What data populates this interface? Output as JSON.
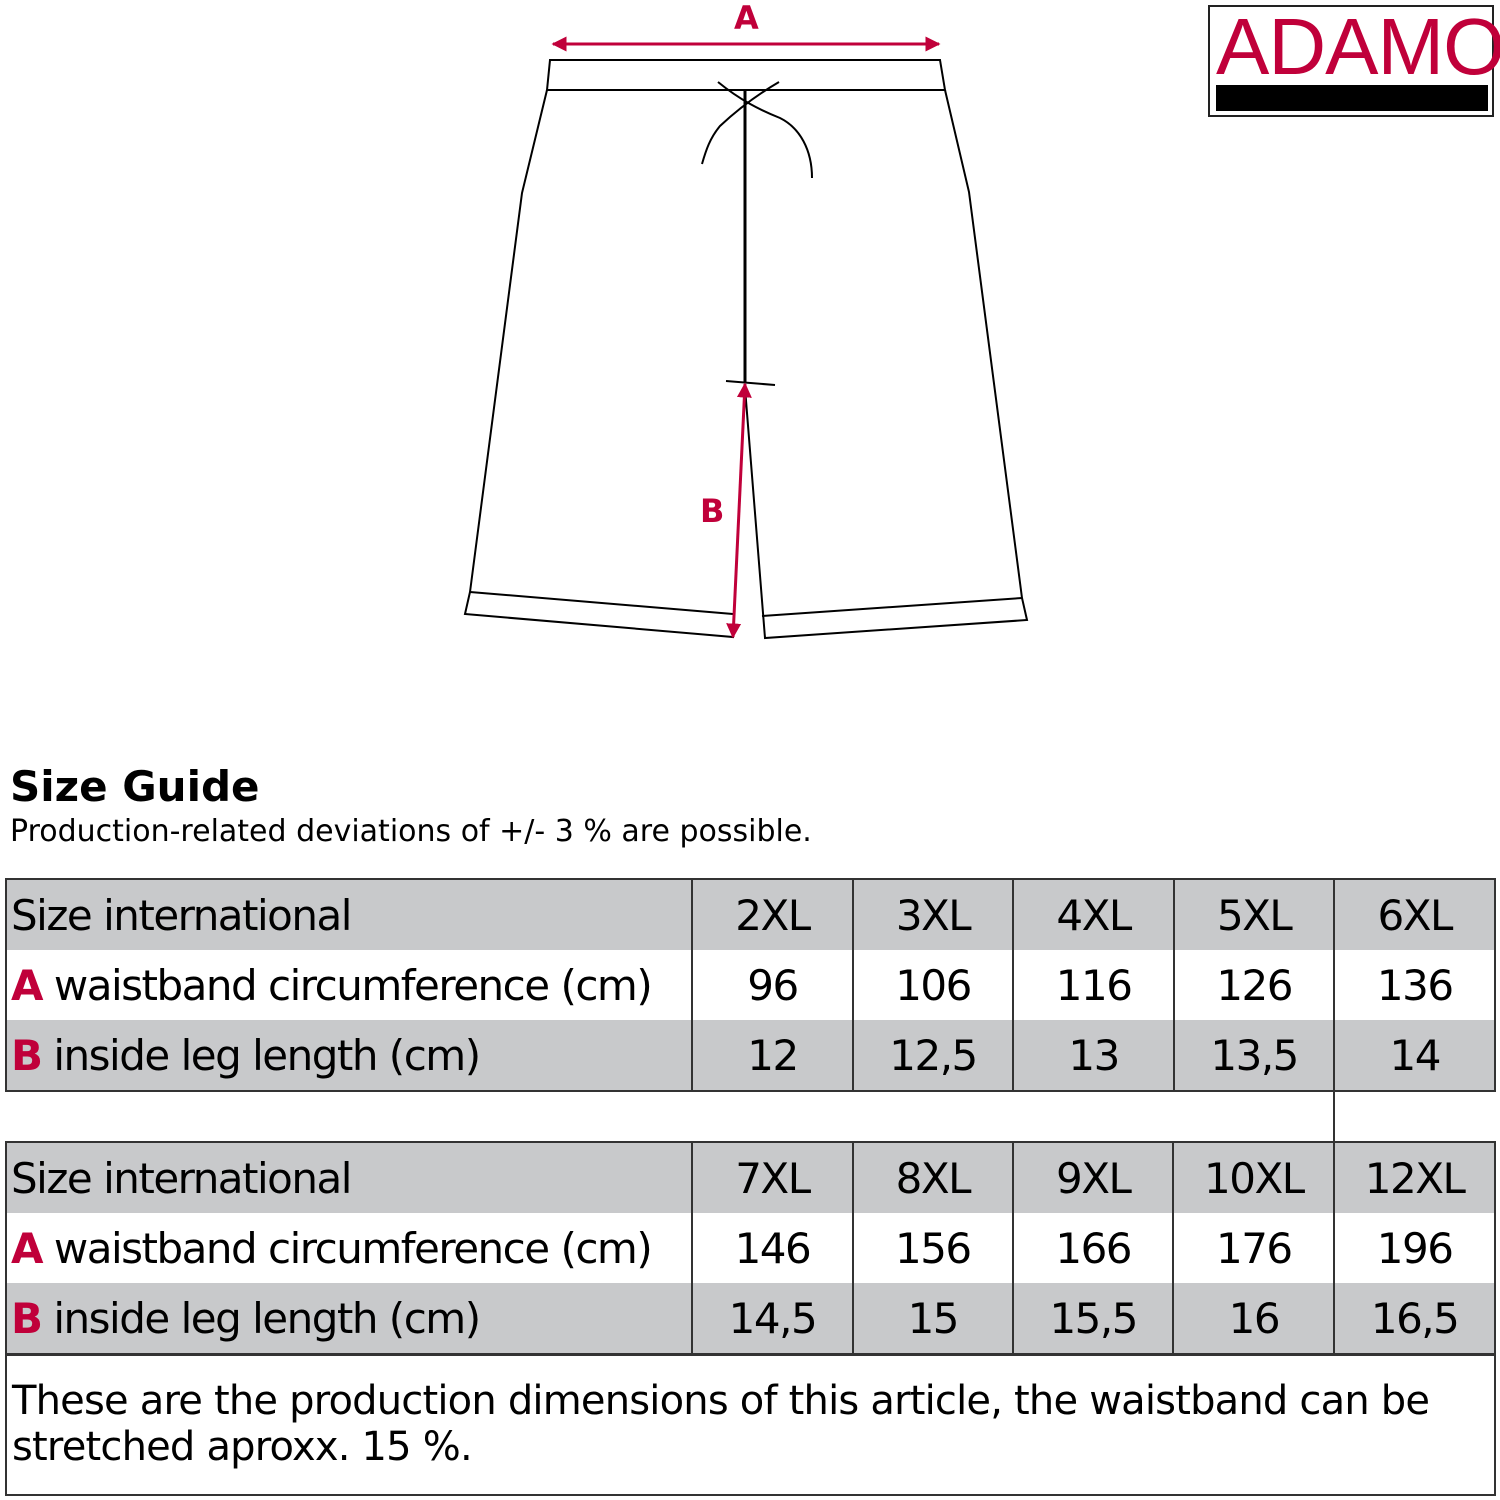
{
  "diagram": {
    "label_a": "A",
    "label_b": "B"
  },
  "logo": {
    "text": "ADAMO"
  },
  "colors": {
    "accent": "#c0003a",
    "row_gray": "#c8c9cb"
  },
  "guide": {
    "title": "Size Guide",
    "subtitle": "Production-related deviations of +/- 3 % are possible."
  },
  "tables": [
    {
      "header_label": "Size international",
      "sizes": [
        "2XL",
        "3XL",
        "4XL",
        "5XL",
        "6XL"
      ],
      "rows": [
        {
          "letter": "A",
          "label": "waistband circumference (cm)",
          "values": [
            "96",
            "106",
            "116",
            "126",
            "136"
          ]
        },
        {
          "letter": "B",
          "label": "inside leg length (cm)",
          "values": [
            "12",
            "12,5",
            "13",
            "13,5",
            "14"
          ]
        }
      ]
    },
    {
      "header_label": "Size international",
      "sizes": [
        "7XL",
        "8XL",
        "9XL",
        "10XL",
        "12XL"
      ],
      "rows": [
        {
          "letter": "A",
          "label": "waistband circumference (cm)",
          "values": [
            "146",
            "156",
            "166",
            "176",
            "196"
          ]
        },
        {
          "letter": "B",
          "label": "inside leg length (cm)",
          "values": [
            "14,5",
            "15",
            "15,5",
            "16",
            "16,5"
          ]
        }
      ]
    }
  ],
  "note": "These are the production dimensions of this article, the waistband can be stretched aproxx. 15 %."
}
